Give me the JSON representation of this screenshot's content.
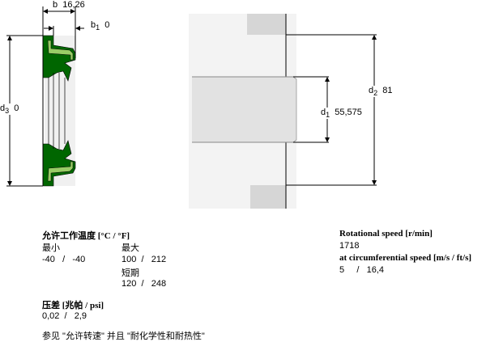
{
  "drawing": {
    "b_label": "b",
    "b_value": "16,26",
    "b1_label": "b",
    "b1_sub": "1",
    "b1_value": "0",
    "d3_label": "d",
    "d3_sub": "3",
    "d3_value": "0",
    "d1_label": "d",
    "d1_sub": "1",
    "d1_value": "55,575",
    "d2_label": "d",
    "d2_sub": "2",
    "d2_value": "81",
    "colors": {
      "seal": "#006600",
      "insert": "#99cc66",
      "housing": "#d8d8d8"
    }
  },
  "temperature": {
    "title": "允许工作温度 [°C / °F]",
    "min_label": "最小",
    "max_label": "最大",
    "min_c": "-40",
    "min_f": "-40",
    "max_c": "100",
    "max_f": "212",
    "short_label": "短期",
    "short_c": "120",
    "short_f": "248",
    "sep": "/"
  },
  "pressure": {
    "title": "压差 [兆帕 / psi]",
    "value": "0,02  /   2,9"
  },
  "note": "参见 \"允许转速\" 并且 \"耐化学性和耐热性\"",
  "speed": {
    "title": "Rotational speed [r/min]",
    "value": "1718",
    "circ_title": "at circumferential speed [m/s / ft/s]",
    "circ_value": "5     /   16,4"
  }
}
